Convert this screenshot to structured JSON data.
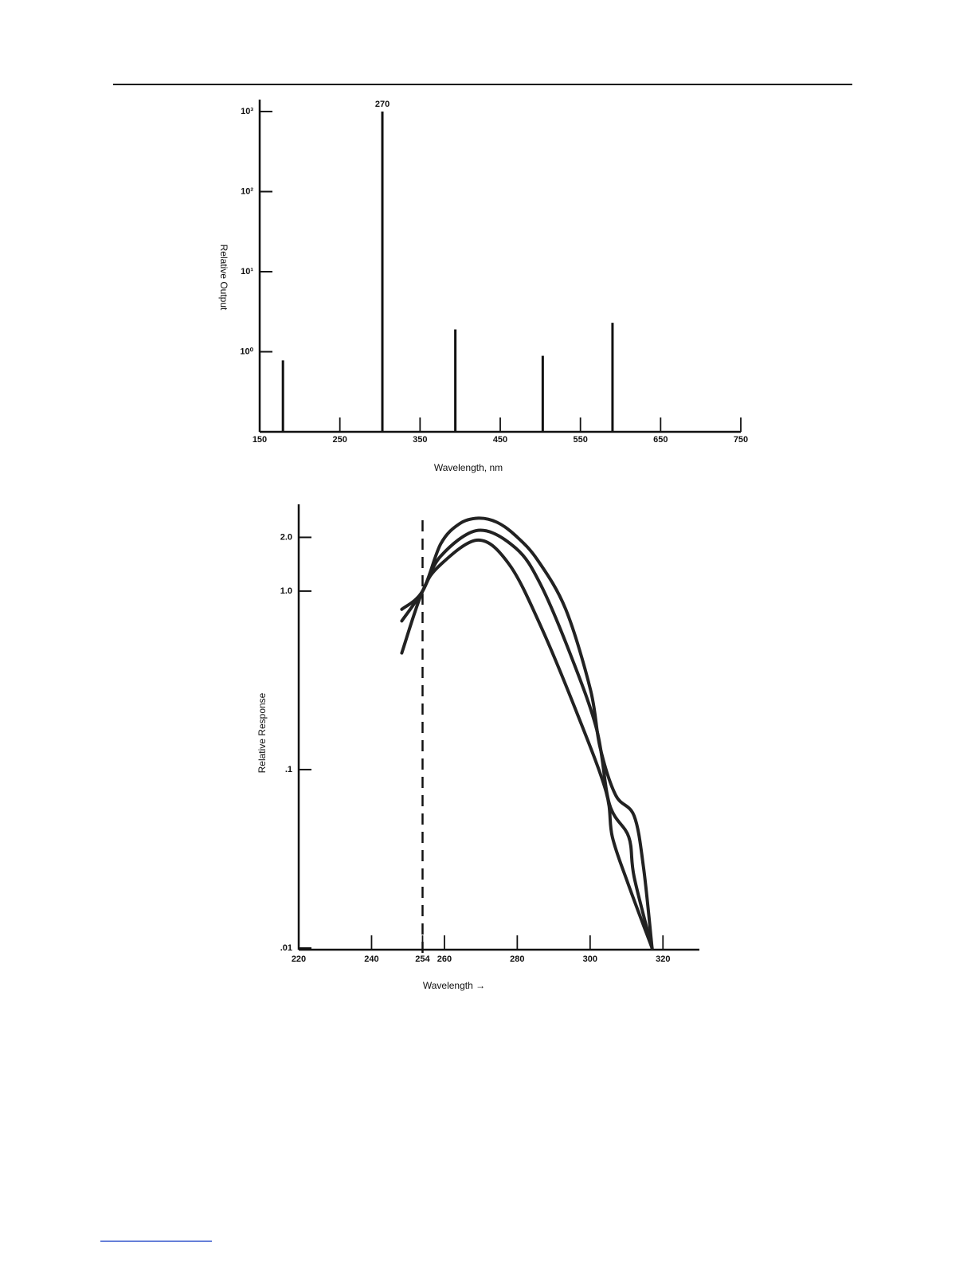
{
  "chart_data": [
    {
      "type": "bar",
      "x": [
        179,
        303,
        394,
        503,
        590
      ],
      "values": [
        0.78,
        1000,
        1.9,
        0.89,
        2.3
      ],
      "annotation": "270",
      "color": "#111111",
      "ylabel": "Relative Output",
      "xlabel": "Wavelength, nm",
      "log_y": true,
      "ylim": [
        0.1,
        1000
      ],
      "yticks": [
        {
          "value": 1,
          "label": "10⁰"
        },
        {
          "value": 10,
          "label": "10¹"
        },
        {
          "value": 100,
          "label": "10²"
        },
        {
          "value": 1000,
          "label": "10³"
        }
      ],
      "xlim": [
        150,
        750
      ],
      "xticks": [
        150,
        250,
        350,
        450,
        550,
        650,
        750
      ]
    },
    {
      "type": "line",
      "ylabel": "Relative Response",
      "xlabel": "Wavelength →",
      "log_y": true,
      "ylim": [
        0.01,
        3
      ],
      "yticks": [
        {
          "value": 0.01,
          "label": ".01"
        },
        {
          "value": 0.1,
          "label": ".1"
        },
        {
          "value": 1,
          "label": "1.0"
        },
        {
          "value": 2,
          "label": "2.0"
        }
      ],
      "xlim": [
        220,
        330
      ],
      "xticks": [
        220,
        240,
        254,
        260,
        280,
        300,
        320
      ],
      "vline": 254,
      "series": [
        {
          "color": "#222222",
          "x": [
            248.3,
            254,
            259.0,
            264.1,
            269.3,
            274.4,
            279.6,
            285.6,
            293.3,
            300.1,
            302.7,
            307.0,
            312.1,
            314.7,
            317.0
          ],
          "values": [
            0.79,
            1.0,
            1.84,
            2.38,
            2.56,
            2.43,
            2.04,
            1.49,
            0.79,
            0.28,
            0.134,
            0.072,
            0.055,
            0.028,
            0.01
          ]
        },
        {
          "color": "#222222",
          "x": [
            248.3,
            254,
            259.0,
            269.3,
            279.6,
            286.4,
            295.0,
            301.9,
            305.3,
            310.6,
            312.1,
            317.0
          ],
          "values": [
            0.68,
            1.0,
            1.57,
            2.19,
            1.74,
            1.09,
            0.42,
            0.165,
            0.064,
            0.042,
            0.025,
            0.01
          ]
        },
        {
          "color": "#222222",
          "x": [
            248.3,
            254,
            259.0,
            269.3,
            277.8,
            286.4,
            296.7,
            304.4,
            306.1,
            310.4,
            317.0
          ],
          "values": [
            0.45,
            1.0,
            1.41,
            1.93,
            1.41,
            0.64,
            0.2,
            0.075,
            0.042,
            0.023,
            0.01
          ]
        }
      ]
    }
  ]
}
